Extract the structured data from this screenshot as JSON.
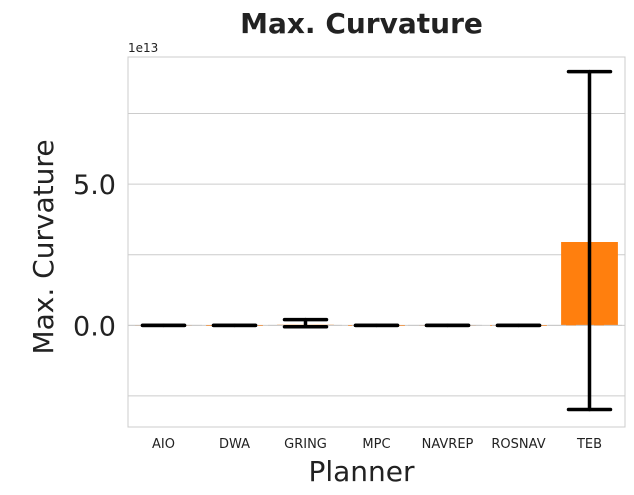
{
  "chart_data": {
    "type": "bar",
    "title": "Max. Curvature",
    "xlabel": "Planner",
    "ylabel": "Max. Curvature",
    "y_offset_label": "1e13",
    "y_scale": 10000000000000,
    "categories": [
      "AIO",
      "DWA",
      "GRING",
      "MPC",
      "NAVREP",
      "ROSNAV",
      "TEB"
    ],
    "values": [
      0.0,
      0.0,
      0.02,
      0.0,
      0.0,
      0.0,
      2.95
    ],
    "error_low": [
      0.0,
      0.0,
      -0.05,
      0.0,
      0.0,
      0.0,
      -2.98
    ],
    "error_high": [
      0.0,
      0.0,
      0.2,
      0.0,
      0.0,
      0.0,
      8.98
    ],
    "yticks": [
      0.0,
      5.0
    ],
    "ytick_labels": [
      "0.0",
      "5.0"
    ],
    "gridlines": [
      -2.5,
      0.0,
      2.5,
      5.0,
      7.5
    ],
    "ylim": [
      -3.6,
      9.5
    ],
    "grid": true,
    "bar_color": "#ff7f0e",
    "error_color": "#000000",
    "grid_color": "#cccccc"
  }
}
